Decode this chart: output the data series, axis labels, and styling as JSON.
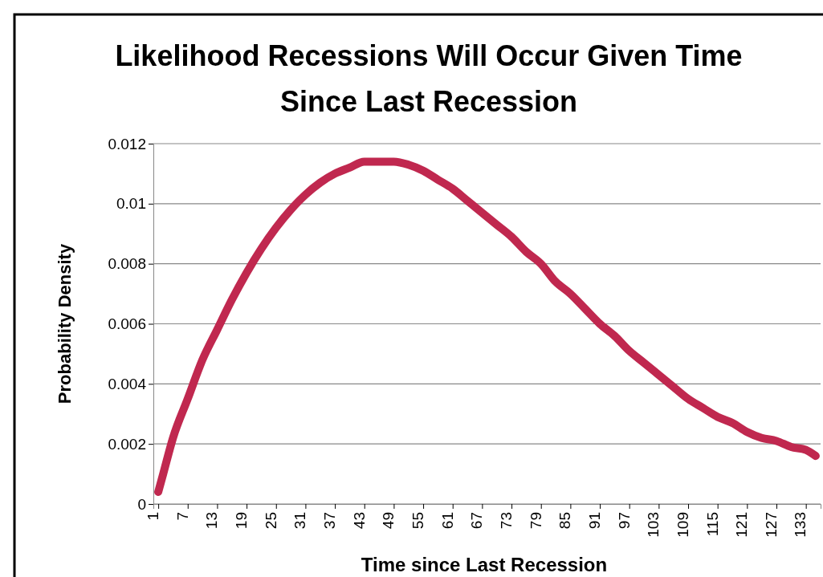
{
  "chart_data": {
    "type": "line",
    "title": "Likelihood Recessions Will Occur Given Time Since Last Recession",
    "xlabel": "Time since  Last Recession",
    "ylabel": "Probability Density",
    "x": [
      1,
      2,
      4,
      7,
      10,
      13,
      16,
      19,
      22,
      25,
      28,
      31,
      34,
      37,
      40,
      43,
      46,
      49,
      52,
      55,
      58,
      61,
      64,
      67,
      70,
      73,
      76,
      79,
      82,
      85,
      88,
      91,
      94,
      97,
      100,
      103,
      106,
      109,
      112,
      115,
      118,
      121,
      124,
      127,
      130,
      133,
      135
    ],
    "series": [
      {
        "color": "#c0284f",
        "values": [
          0.0004,
          0.001,
          0.0022,
          0.0035,
          0.0048,
          0.0058,
          0.0068,
          0.0077,
          0.0085,
          0.0092,
          0.0098,
          0.0103,
          0.0107,
          0.011,
          0.0112,
          0.0114,
          0.0114,
          0.0114,
          0.0113,
          0.0111,
          0.0108,
          0.0105,
          0.0101,
          0.0097,
          0.0093,
          0.0089,
          0.0084,
          0.008,
          0.0074,
          0.007,
          0.0065,
          0.006,
          0.0056,
          0.0051,
          0.0047,
          0.0043,
          0.0039,
          0.0035,
          0.0032,
          0.0029,
          0.0027,
          0.0024,
          0.0022,
          0.0021,
          0.0019,
          0.0018,
          0.0016
        ]
      }
    ],
    "xlim": [
      0,
      136
    ],
    "xticks": [
      1,
      7,
      13,
      19,
      25,
      31,
      37,
      43,
      49,
      55,
      61,
      67,
      73,
      79,
      85,
      91,
      97,
      103,
      109,
      115,
      121,
      127,
      133
    ],
    "ylim": [
      0,
      0.012
    ],
    "yticks": [
      0,
      0.002,
      0.004,
      0.006,
      0.008,
      0.01,
      0.012
    ],
    "grid": "y",
    "marker": "none",
    "line_style": "solid"
  }
}
